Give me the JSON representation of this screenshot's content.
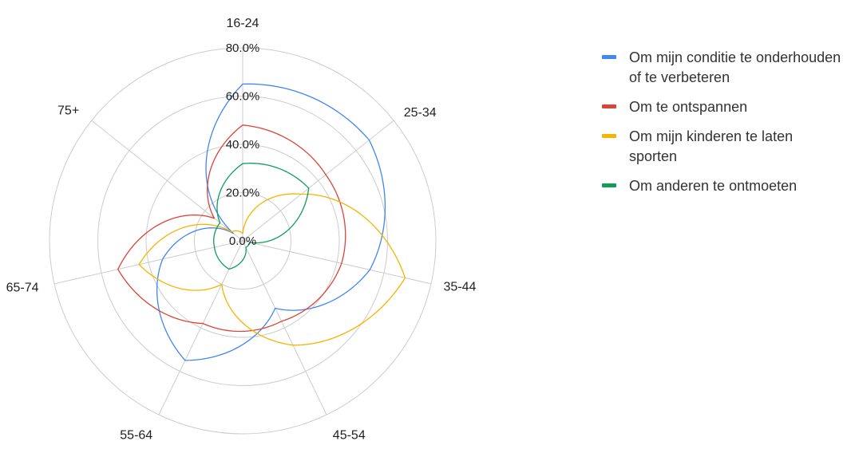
{
  "chart_data": {
    "type": "radar",
    "categories": [
      "16-24",
      "25-34",
      "35-44",
      "45-54",
      "55-64",
      "65-74",
      "75+"
    ],
    "radial_ticks": [
      "0.0%",
      "20.0%",
      "40.0%",
      "60.0%",
      "80.0%"
    ],
    "rmax": 80,
    "series": [
      {
        "name": "Om mijn conditie te onderhouden of te verbeteren",
        "color": "#4285f4",
        "values": [
          65,
          67,
          54,
          31,
          55,
          34,
          5
        ]
      },
      {
        "name": "Om te ontspannen",
        "color": "#db4437",
        "values": [
          48,
          44,
          42,
          37,
          38,
          53,
          15
        ]
      },
      {
        "name": "Om mijn kinderen te laten sporten",
        "color": "#f4b400",
        "values": [
          3,
          31,
          69,
          48,
          20,
          44,
          6
        ]
      },
      {
        "name": "Om anderen te ontmoeten",
        "color": "#0f9d58",
        "values": [
          32,
          35,
          3,
          3,
          13,
          12,
          12
        ]
      }
    ],
    "legend_position": "right"
  }
}
